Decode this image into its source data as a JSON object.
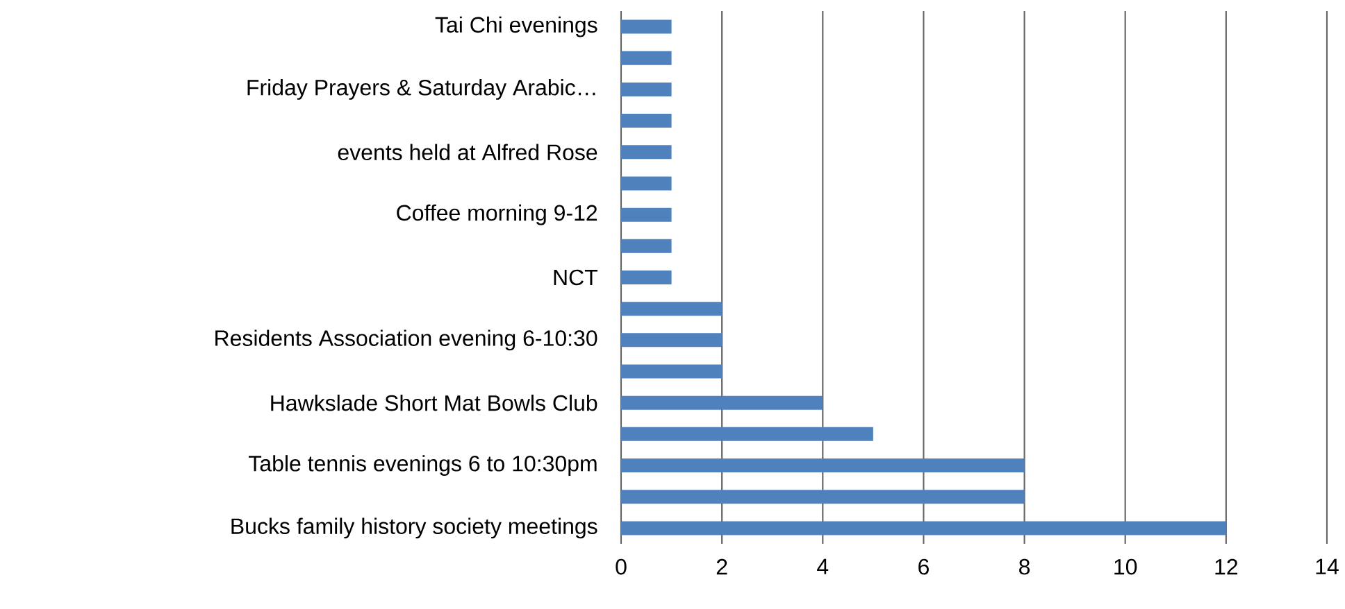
{
  "chart_data": {
    "type": "bar",
    "orientation": "horizontal",
    "categories": [
      "Tai Chi evenings",
      null,
      "Friday Prayers & Saturday Arabic…",
      null,
      "events held at Alfred Rose",
      null,
      "Coffee morning 9-12",
      null,
      "NCT",
      null,
      "Residents Association evening 6-10:30",
      null,
      "Hawkslade Short Mat Bowls Club",
      null,
      "Table tennis evenings 6 to 10:30pm",
      null,
      "Bucks family history society meetings"
    ],
    "values": [
      1,
      1,
      1,
      1,
      1,
      1,
      1,
      1,
      1,
      2,
      2,
      2,
      4,
      5,
      8,
      8,
      12
    ],
    "color": "#4f81bd",
    "xlim": [
      0,
      14
    ],
    "xticks": [
      0,
      2,
      4,
      6,
      8,
      10,
      12,
      14
    ],
    "grid": "x"
  }
}
